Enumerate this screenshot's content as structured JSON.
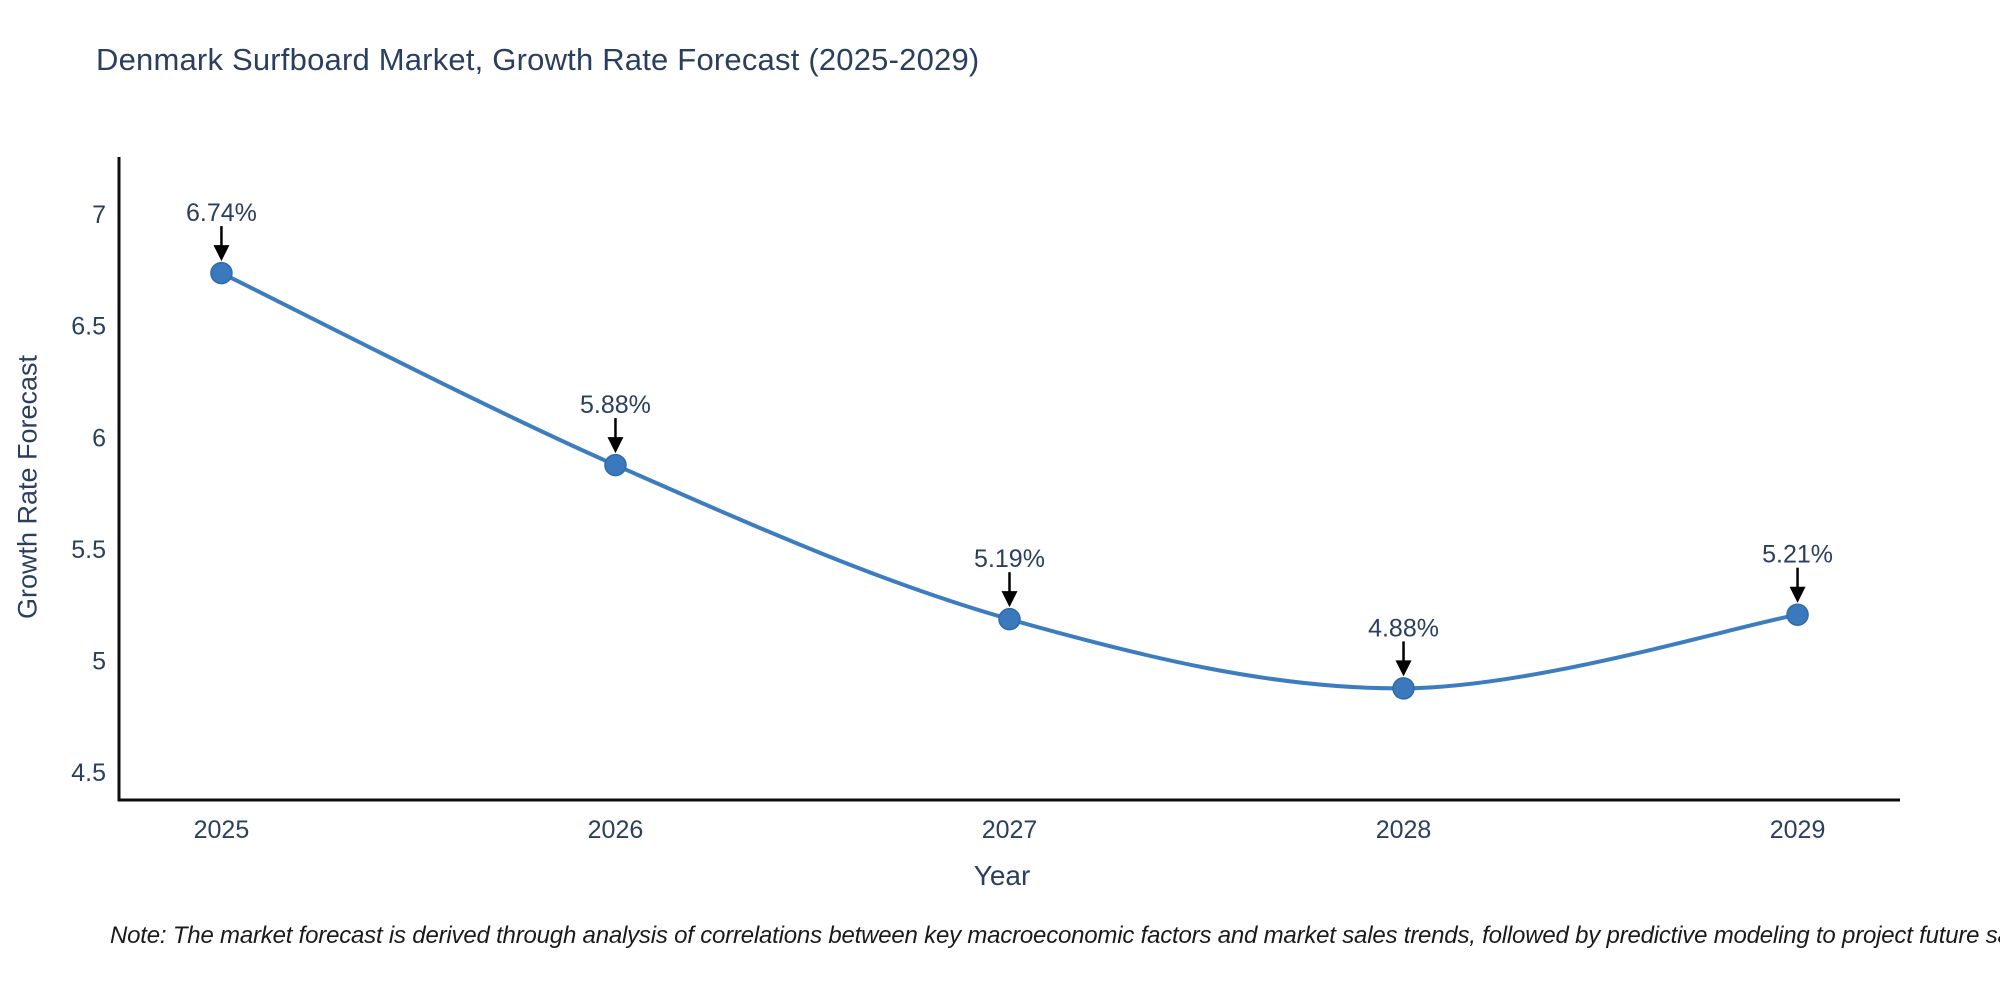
{
  "chart_data": {
    "type": "line",
    "title": "Denmark Surfboard Market, Growth Rate Forecast (2025-2029)",
    "xlabel": "Year",
    "ylabel": "Growth Rate Forecast",
    "x": [
      2025,
      2026,
      2027,
      2028,
      2029
    ],
    "xtick_labels": [
      "2025",
      "2026",
      "2027",
      "2028",
      "2029"
    ],
    "series": [
      {
        "name": "Growth Rate Forecast",
        "values": [
          6.74,
          5.88,
          5.19,
          4.88,
          5.21
        ],
        "point_labels": [
          "6.74%",
          "5.88%",
          "5.19%",
          "4.88%",
          "5.21%"
        ]
      }
    ],
    "yticks": [
      4.5,
      5,
      5.5,
      6,
      6.5,
      7
    ],
    "ytick_labels": [
      "4.5",
      "5",
      "5.5",
      "6",
      "6.5",
      "7"
    ],
    "ylim": [
      4.38,
      7.26
    ],
    "xlim": [
      2024.74,
      2029.26
    ],
    "line_shape": "spline",
    "grid": false,
    "legend": "none",
    "colors": {
      "line": "#3d7dbf",
      "marker_fill": "#3a79bb",
      "marker_edge": "#2f6ba8",
      "axis": "#0d0d0d",
      "tick_label": "#2a3f5f",
      "annotation_text": "#2a3f5f",
      "annotation_arrow": "#000000",
      "title": "#2a3f5f"
    }
  },
  "footnote": {
    "text": "Note: The market forecast is derived through analysis of correlations between key macroeconomic factors and market sales trends, followed by predictive modeling to project future sales"
  }
}
